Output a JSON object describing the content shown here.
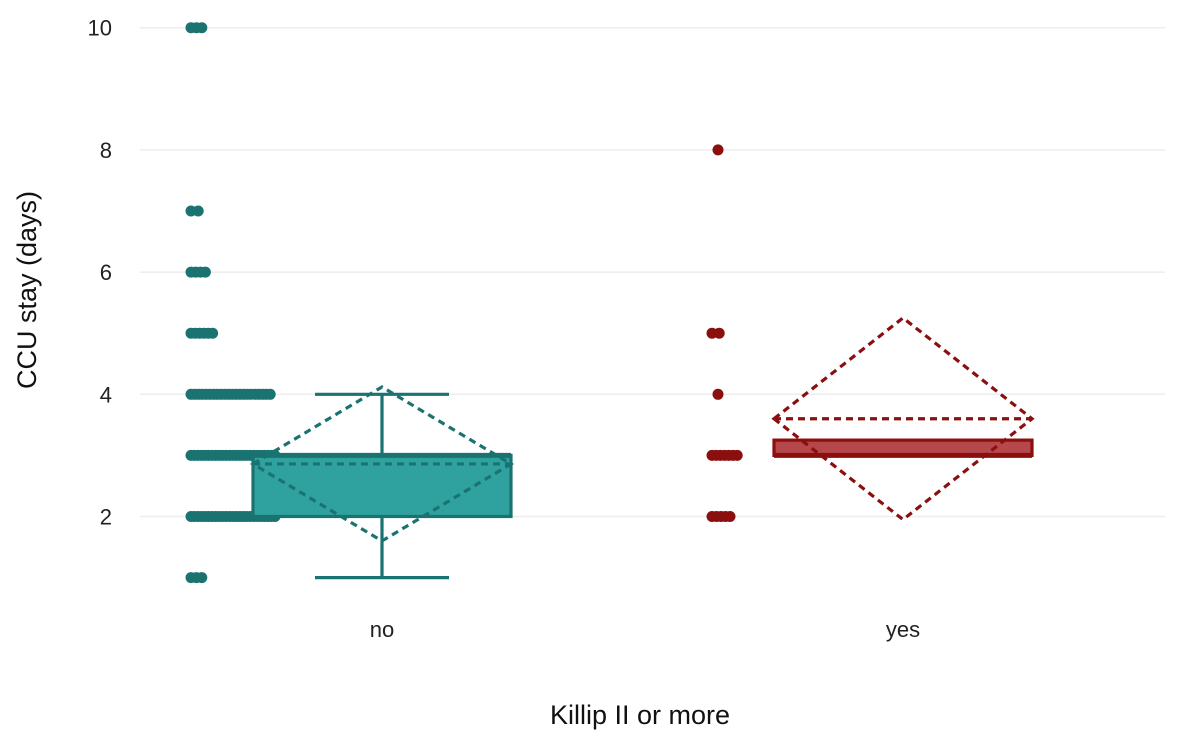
{
  "chart_data": {
    "type": "box",
    "xlabel": "Killip II or more",
    "ylabel": "CCU stay (days)",
    "categories": [
      "no",
      "yes"
    ],
    "y_ticks": [
      2,
      4,
      6,
      8,
      10
    ],
    "ylim": [
      0.6,
      10.3
    ],
    "grid": "horizontal",
    "series": [
      {
        "category": "no",
        "color": "#1a7371",
        "fill": "#2fa19e",
        "box": {
          "whisker_low": 1,
          "q1": 2,
          "median": 3,
          "q3": 3,
          "whisker_high": 4
        },
        "mean": 2.86,
        "mean_ci": [
          1.6,
          4.12
        ],
        "points": [
          {
            "y": 1,
            "count": 3
          },
          {
            "y": 2,
            "count": 25
          },
          {
            "y": 3,
            "count": 25
          },
          {
            "y": 4,
            "count": 22
          },
          {
            "y": 5,
            "count": 6
          },
          {
            "y": 6,
            "count": 4
          },
          {
            "y": 7,
            "count": 2
          },
          {
            "y": 10,
            "count": 3
          }
        ]
      },
      {
        "category": "yes",
        "color": "#8b0f0f",
        "fill": "#b6484b",
        "box": {
          "whisker_low": 3,
          "q1": 3,
          "median": 3,
          "q3": 3.25,
          "whisker_high": 3.25
        },
        "mean": 3.6,
        "mean_ci": [
          1.95,
          5.25
        ],
        "points": [
          {
            "y": 2,
            "count": 5
          },
          {
            "y": 3,
            "count": 7
          },
          {
            "y": 4,
            "count": 1
          },
          {
            "y": 5,
            "count": 2
          },
          {
            "y": 8,
            "count": 1
          }
        ]
      }
    ]
  }
}
